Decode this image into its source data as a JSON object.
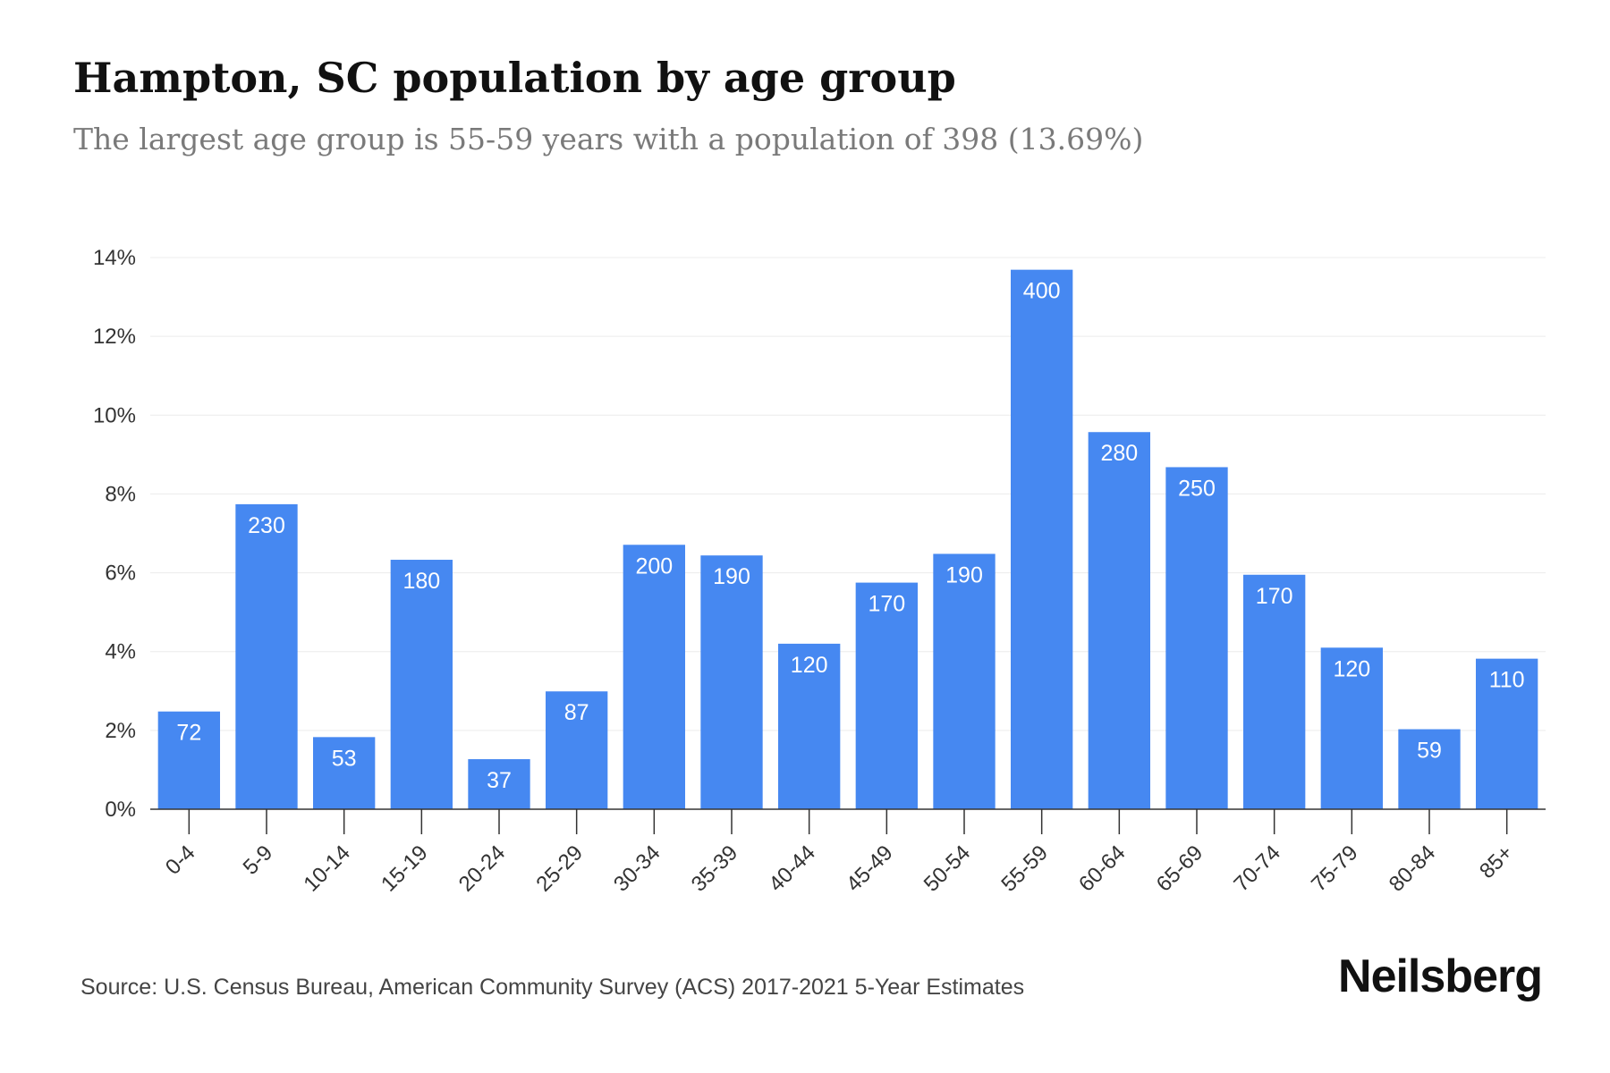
{
  "chart_data": {
    "type": "bar",
    "title": "Hampton, SC population by age group",
    "subtitle": "The largest age group is 55-59 years with a population of 398 (13.69%)",
    "categories": [
      "0-4",
      "5-9",
      "10-14",
      "15-19",
      "20-24",
      "25-29",
      "30-34",
      "35-39",
      "40-44",
      "45-49",
      "50-54",
      "55-59",
      "60-64",
      "65-69",
      "70-74",
      "75-79",
      "80-84",
      "85+"
    ],
    "values": [
      2.48,
      7.74,
      1.83,
      6.33,
      1.27,
      2.99,
      6.71,
      6.44,
      4.2,
      5.75,
      6.48,
      13.69,
      9.57,
      8.68,
      5.95,
      4.1,
      2.03,
      3.82
    ],
    "data_labels": [
      "72",
      "230",
      "53",
      "180",
      "37",
      "87",
      "200",
      "190",
      "120",
      "170",
      "190",
      "400",
      "280",
      "250",
      "170",
      "120",
      "59",
      "110"
    ],
    "y_ticks": [
      "0%",
      "2%",
      "4%",
      "6%",
      "8%",
      "10%",
      "12%",
      "14%"
    ],
    "ylim": [
      0,
      14
    ],
    "xlabel": "",
    "ylabel": "",
    "grid": true,
    "legend": "none",
    "bar_color": "#4688f1"
  },
  "footer": {
    "source": "Source: U.S. Census Bureau, American Community Survey (ACS) 2017-2021 5-Year Estimates",
    "brand": "Neilsberg"
  }
}
